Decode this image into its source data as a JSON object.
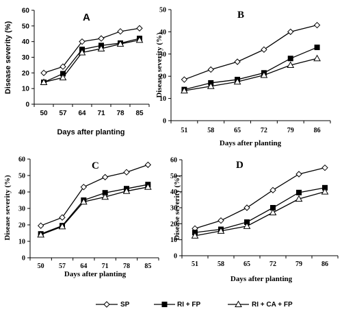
{
  "legend": [
    {
      "name": "SP",
      "label": "SP",
      "marker": "diamond-open"
    },
    {
      "name": "RI + FP",
      "label": "RI + FP",
      "marker": "square-filled"
    },
    {
      "name": "RI + CA + FP",
      "label": "RI + CA + FP",
      "marker": "triangle-open"
    }
  ],
  "chart_data": [
    {
      "type": "line",
      "title": "A",
      "xlabel": "Days after planting",
      "ylabel": "Disease severity (%)",
      "categories": [
        "50",
        "57",
        "64",
        "71",
        "78",
        "85"
      ],
      "ylim": [
        0,
        60
      ],
      "yticks": [
        0,
        10,
        20,
        30,
        40,
        50,
        60
      ],
      "series": [
        {
          "name": "SP",
          "marker": "diamond-open",
          "values": [
            20,
            24,
            40,
            42,
            46.5,
            48.5
          ]
        },
        {
          "name": "RI + FP",
          "marker": "square-filled",
          "values": [
            14,
            19.5,
            35,
            37.5,
            39,
            42
          ]
        },
        {
          "name": "RI + CA + FP",
          "marker": "triangle-open",
          "values": [
            14,
            17,
            33,
            35.5,
            38.5,
            41
          ]
        }
      ]
    },
    {
      "type": "line",
      "title": "B",
      "xlabel": "Days after planting",
      "ylabel": "Disease severity (%)",
      "categories": [
        "51",
        "58",
        "65",
        "72",
        "79",
        "86"
      ],
      "ylim": [
        0,
        50
      ],
      "yticks": [
        0,
        10,
        20,
        30,
        40,
        50
      ],
      "series": [
        {
          "name": "SP",
          "marker": "diamond-open",
          "values": [
            18.5,
            23,
            26.5,
            32,
            40,
            43
          ]
        },
        {
          "name": "RI + FP",
          "marker": "square-filled",
          "values": [
            14,
            17,
            18.5,
            21.5,
            28,
            33
          ]
        },
        {
          "name": "RI + CA + FP",
          "marker": "triangle-open",
          "values": [
            13.5,
            15.5,
            17.5,
            20.5,
            25,
            28
          ]
        }
      ]
    },
    {
      "type": "line",
      "title": "C",
      "xlabel": "Days after planting",
      "ylabel": "Disease severity (%)",
      "categories": [
        "50",
        "57",
        "64",
        "71",
        "78",
        "85"
      ],
      "ylim": [
        0,
        60
      ],
      "yticks": [
        0,
        10,
        20,
        30,
        40,
        50,
        60
      ],
      "series": [
        {
          "name": "SP",
          "marker": "diamond-open",
          "values": [
            19.5,
            24.5,
            43,
            49,
            52,
            56.5
          ]
        },
        {
          "name": "RI + FP",
          "marker": "square-filled",
          "values": [
            14.5,
            19.5,
            35,
            39.5,
            42,
            44.5
          ]
        },
        {
          "name": "RI + CA + FP",
          "marker": "triangle-open",
          "values": [
            14,
            19,
            34,
            37,
            40.5,
            43
          ]
        }
      ]
    },
    {
      "type": "line",
      "title": "D",
      "xlabel": "Days after planting",
      "ylabel": "Disease severity (%)",
      "categories": [
        "51",
        "58",
        "65",
        "72",
        "79",
        "86"
      ],
      "ylim": [
        0,
        60
      ],
      "yticks": [
        0,
        10,
        20,
        30,
        40,
        50,
        60
      ],
      "series": [
        {
          "name": "SP",
          "marker": "diamond-open",
          "values": [
            17,
            22,
            30,
            41,
            51,
            55
          ]
        },
        {
          "name": "RI + FP",
          "marker": "square-filled",
          "values": [
            14.5,
            16.5,
            21,
            30,
            39.5,
            42.5
          ]
        },
        {
          "name": "RI + CA + FP",
          "marker": "triangle-open",
          "values": [
            12.5,
            15.5,
            18.5,
            27,
            35.5,
            40
          ]
        }
      ]
    }
  ]
}
